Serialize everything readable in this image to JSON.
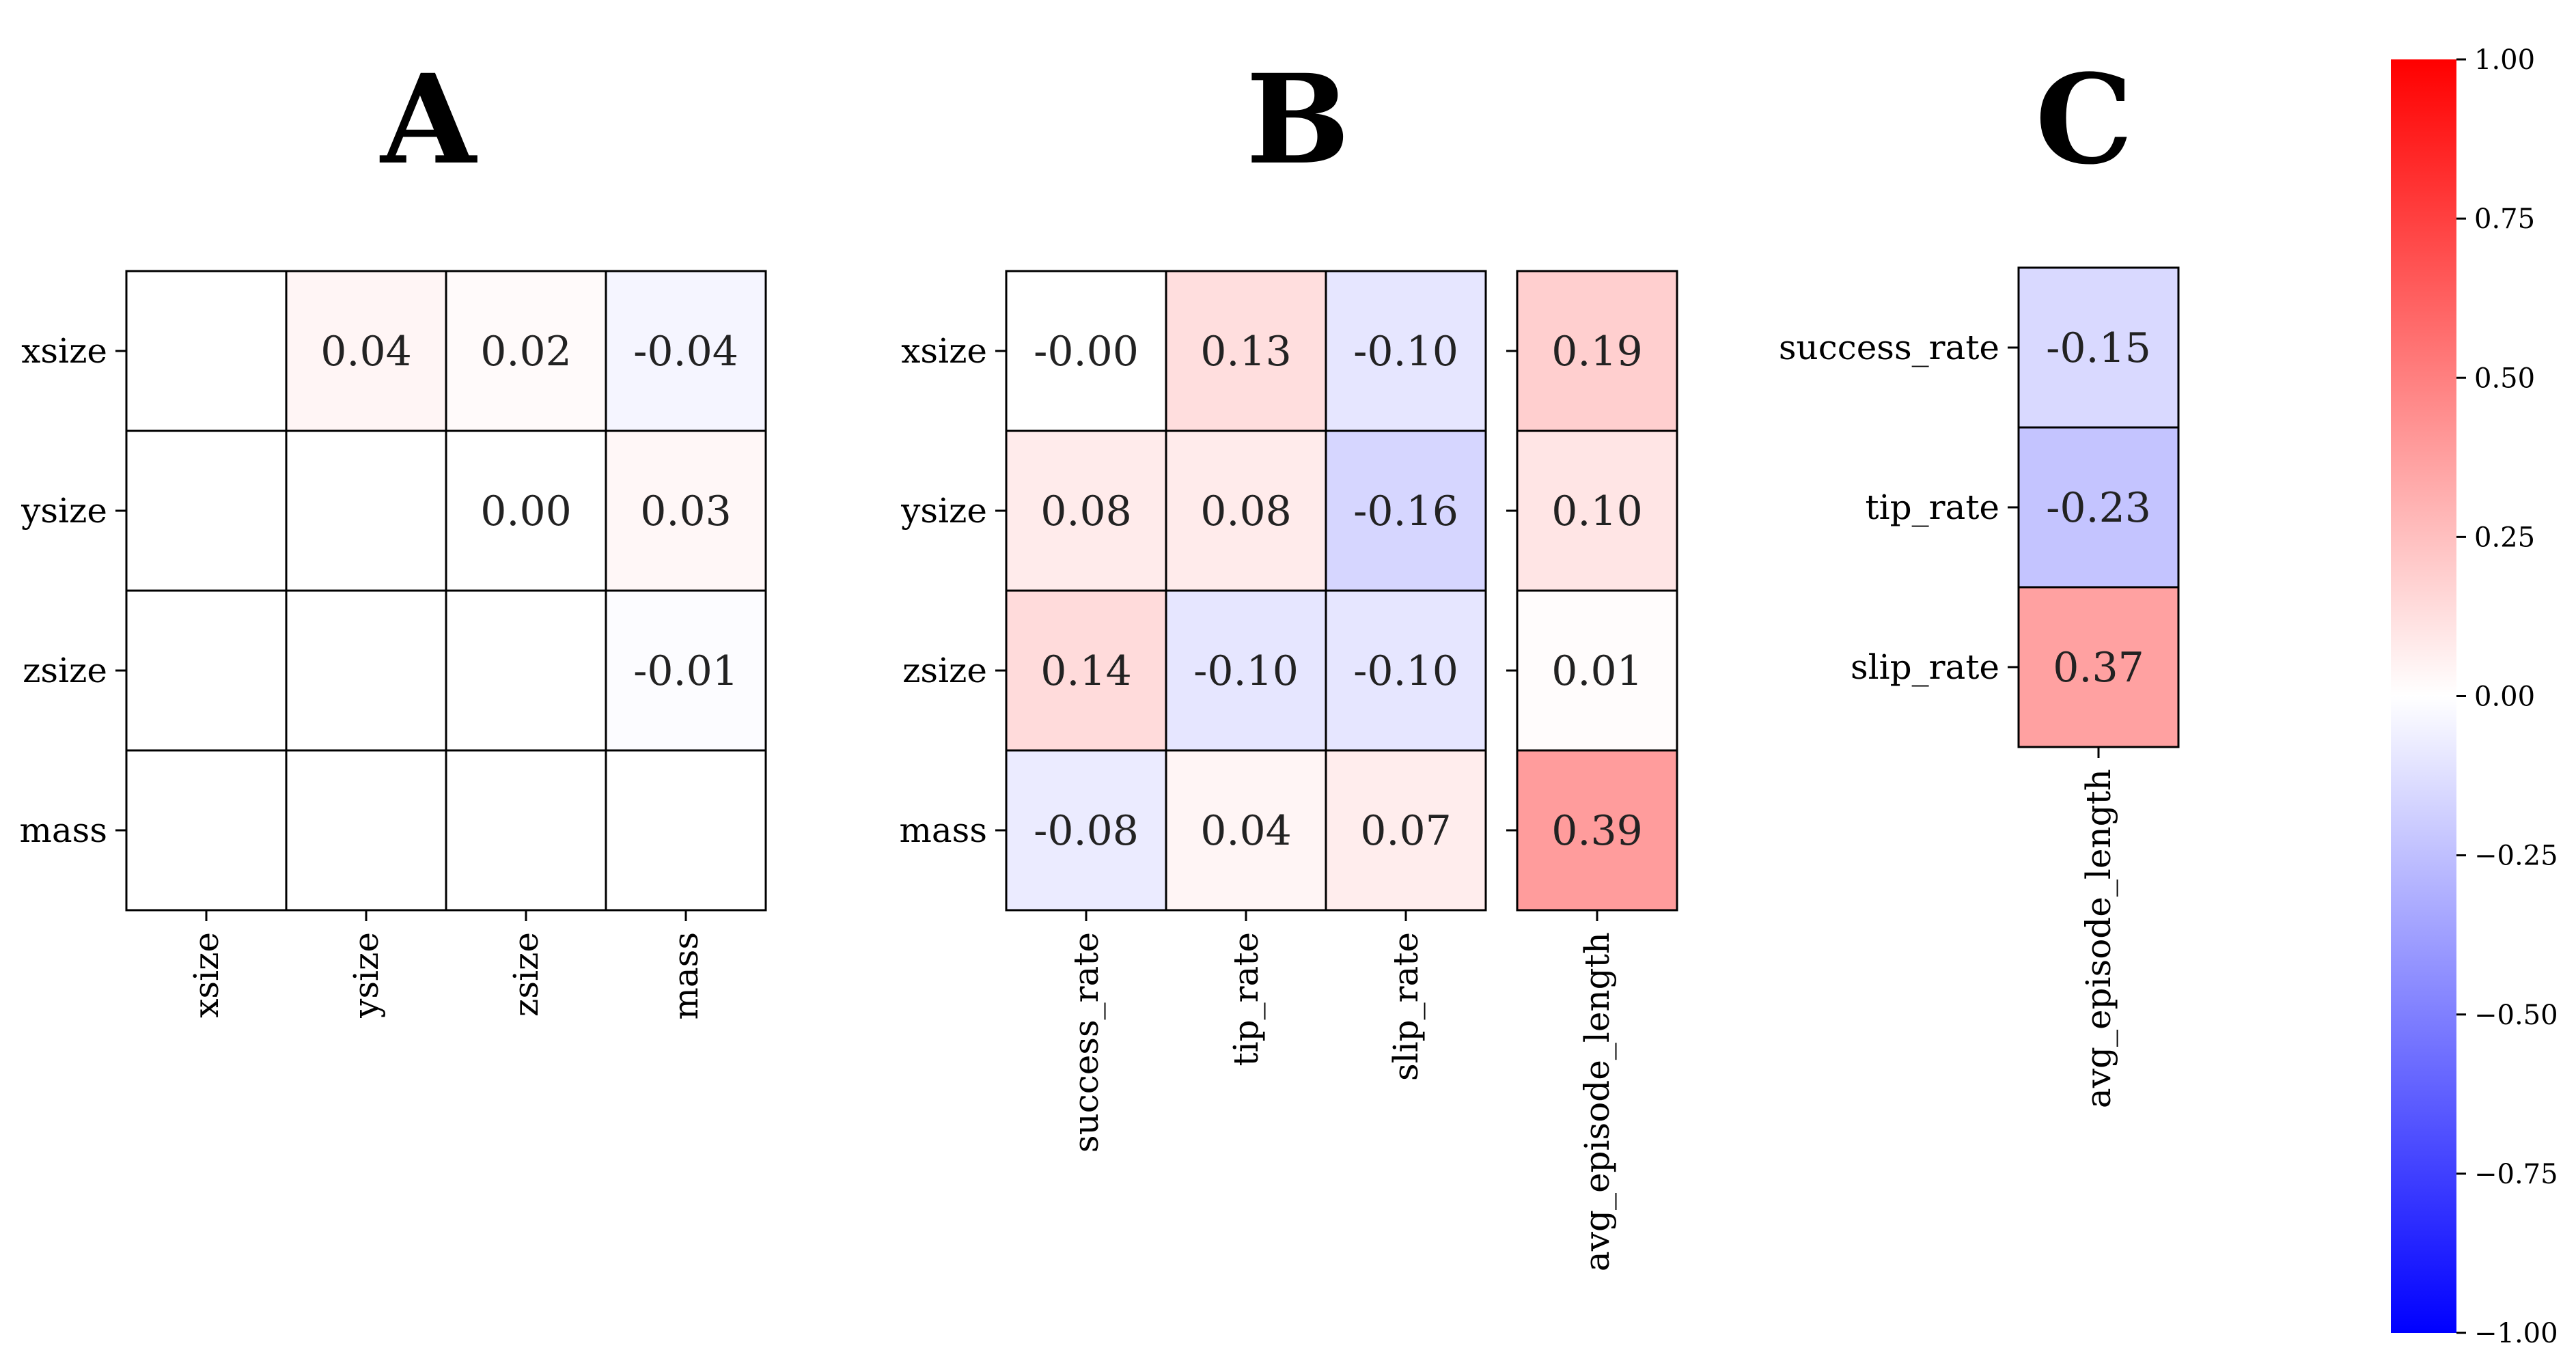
{
  "chart_data": [
    {
      "type": "heatmap",
      "title": "A",
      "rows": [
        "xsize",
        "ysize",
        "zsize",
        "mass"
      ],
      "columns": [
        "xsize",
        "ysize",
        "zsize",
        "mass"
      ],
      "values": [
        [
          null,
          0.04,
          0.02,
          -0.04
        ],
        [
          null,
          null,
          0.0,
          0.03
        ],
        [
          null,
          null,
          null,
          -0.01
        ],
        [
          null,
          null,
          null,
          null
        ]
      ],
      "labels": [
        [
          "",
          "0.04",
          "0.02",
          "-0.04"
        ],
        [
          "",
          "",
          "0.00",
          "0.03"
        ],
        [
          "",
          "",
          "",
          "-0.01"
        ],
        [
          "",
          "",
          "",
          ""
        ]
      ]
    },
    {
      "type": "heatmap",
      "title": "B",
      "rows": [
        "xsize",
        "ysize",
        "zsize",
        "mass"
      ],
      "columns": [
        "success_rate",
        "tip_rate",
        "slip_rate"
      ],
      "values": [
        [
          0.0,
          0.13,
          -0.1
        ],
        [
          0.08,
          0.08,
          -0.16
        ],
        [
          0.14,
          -0.1,
          -0.1
        ],
        [
          -0.08,
          0.04,
          0.07
        ]
      ],
      "labels": [
        [
          "-0.00",
          "0.13",
          "-0.10"
        ],
        [
          "0.08",
          "0.08",
          "-0.16"
        ],
        [
          "0.14",
          "-0.10",
          "-0.10"
        ],
        [
          "-0.08",
          "0.04",
          "0.07"
        ]
      ]
    },
    {
      "type": "heatmap",
      "title": "",
      "rows": [
        "xsize",
        "ysize",
        "zsize",
        "mass"
      ],
      "columns": [
        "avg_episode_length"
      ],
      "values": [
        [
          0.19
        ],
        [
          0.1
        ],
        [
          0.01
        ],
        [
          0.39
        ]
      ],
      "labels": [
        [
          "0.19"
        ],
        [
          "0.10"
        ],
        [
          "0.01"
        ],
        [
          "0.39"
        ]
      ]
    },
    {
      "type": "heatmap",
      "title": "C",
      "rows": [
        "success_rate",
        "tip_rate",
        "slip_rate"
      ],
      "columns": [
        "avg_episode_length"
      ],
      "values": [
        [
          -0.15
        ],
        [
          -0.23
        ],
        [
          0.37
        ]
      ],
      "labels": [
        [
          "-0.15"
        ],
        [
          "-0.23"
        ],
        [
          "0.37"
        ]
      ]
    }
  ],
  "colorbar": {
    "colormap": "bwr",
    "vmin": -1.0,
    "vmax": 1.0,
    "ticks": [
      1.0,
      0.75,
      0.5,
      0.25,
      0.0,
      -0.25,
      -0.5,
      -0.75,
      -1.0
    ],
    "tick_labels": [
      "1.00",
      "0.75",
      "0.50",
      "0.25",
      "0.00",
      "−0.25",
      "−0.50",
      "−0.75",
      "−1.00"
    ]
  }
}
